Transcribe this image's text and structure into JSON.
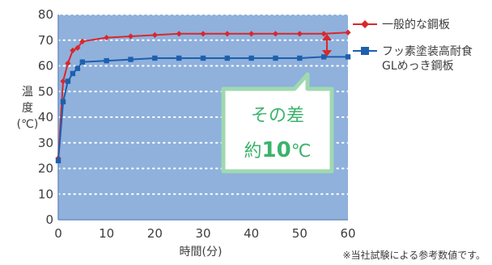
{
  "chart_data": {
    "type": "line",
    "ylabel_chars": [
      "温",
      "度",
      "(℃)"
    ],
    "xlabel": "時間(分)",
    "ylim": [
      0,
      80
    ],
    "xlim": [
      0,
      60
    ],
    "yticks": [
      0,
      10,
      20,
      30,
      40,
      50,
      60,
      70,
      80
    ],
    "xticks": [
      0,
      10,
      20,
      30,
      40,
      50,
      60
    ],
    "grid": true,
    "legend_position": "right",
    "series": [
      {
        "name": "一般的な鋼板",
        "color": "#d8282b",
        "marker": "diamond",
        "x": [
          0,
          1,
          2,
          3,
          4,
          5,
          10,
          15,
          20,
          25,
          30,
          35,
          40,
          45,
          50,
          55,
          60
        ],
        "y": [
          24,
          54,
          61,
          66,
          67,
          69.5,
          71,
          71.5,
          72,
          72.5,
          72.5,
          72.5,
          72.5,
          72.5,
          72.5,
          72.5,
          73
        ]
      },
      {
        "name_lines": [
          "フッ素塗装高耐食",
          "GLめっき鋼板"
        ],
        "color": "#1e5fae",
        "marker": "square",
        "x": [
          0,
          1,
          2,
          3,
          4,
          5,
          10,
          15,
          20,
          25,
          30,
          35,
          40,
          45,
          50,
          55,
          60
        ],
        "y": [
          23,
          46,
          54,
          57,
          59,
          61.5,
          62,
          62.5,
          63,
          63,
          63,
          63,
          63,
          63,
          63,
          63.5,
          63.5
        ]
      }
    ],
    "annotation": {
      "line1": "その差",
      "prefix": "約",
      "number": "10",
      "unit": "℃",
      "arrow_color": "#d8282b"
    },
    "footnote": "※当社試験による参考数値です。"
  },
  "colors": {
    "plot_bg": "#8fb1dc",
    "grid": "#ffffff",
    "callout_border": "#9ed9b0",
    "callout_text": "#3bb36c"
  }
}
